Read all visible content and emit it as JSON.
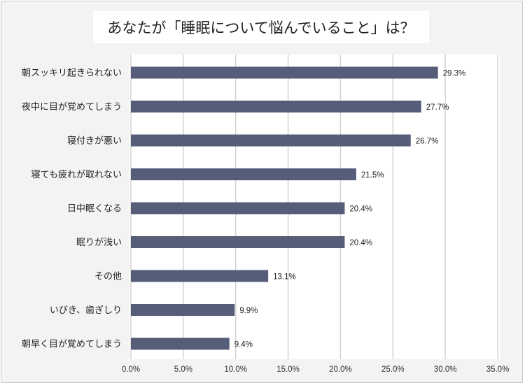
{
  "chart_data": {
    "type": "bar",
    "orientation": "horizontal",
    "title": "あなたが「睡眠について悩んでいること」は？",
    "categories": [
      "朝スッキリ起きられない",
      "夜中に目が覚めてしまう",
      "寝付きが悪い",
      "寝ても疲れが取れない",
      "日中眠くなる",
      "眠りが浅い",
      "その他",
      "いびき、歯ぎしり",
      "朝早く目が覚めてしまう"
    ],
    "values": [
      29.3,
      27.7,
      26.7,
      21.5,
      20.4,
      20.4,
      13.1,
      9.9,
      9.4
    ],
    "value_labels": [
      "29.3%",
      "27.7%",
      "26.7%",
      "21.5%",
      "20.4%",
      "20.4%",
      "13.1%",
      "9.9%",
      "9.4%"
    ],
    "xlim": [
      0,
      35
    ],
    "x_ticks": [
      "0.0%",
      "5.0%",
      "10.0%",
      "15.0%",
      "20.0%",
      "25.0%",
      "30.0%",
      "35.0%"
    ],
    "grid": "vertical",
    "bar_color": "#555d78",
    "grid_color": "#d0d0d0",
    "background_color": "#f3f3f3"
  }
}
